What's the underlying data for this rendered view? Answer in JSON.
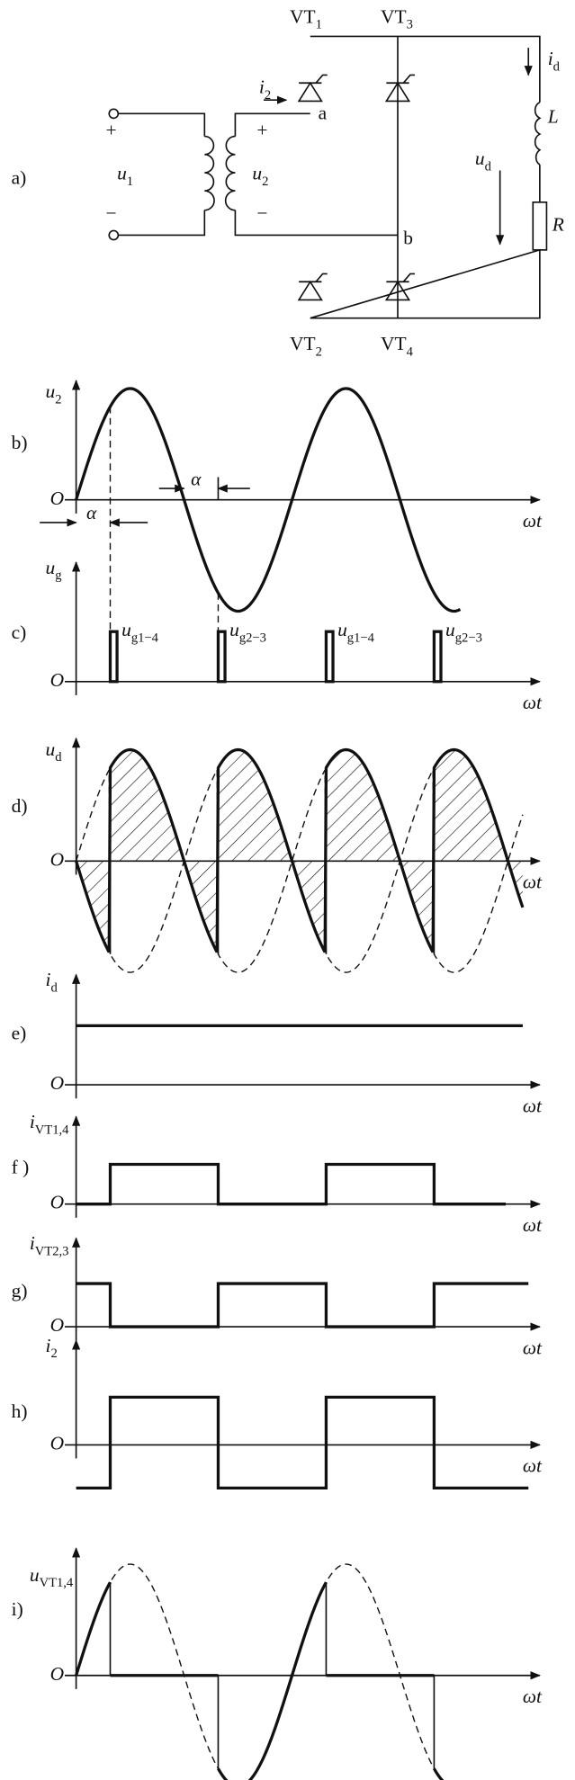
{
  "circuit": {
    "labels": [
      "a)",
      "+",
      {
        "main": "u",
        "sub": "1"
      },
      "−",
      {
        "main": "i",
        "sub": "2"
      },
      "+",
      {
        "main": "u",
        "sub": "2"
      },
      "−",
      "a",
      "b",
      {
        "main": "VT",
        "sub": "1"
      },
      {
        "main": "VT",
        "sub": "3"
      },
      {
        "main": "VT",
        "sub": "2"
      },
      {
        "main": "VT",
        "sub": "4"
      },
      {
        "main": "i",
        "sub": "d"
      },
      "L",
      {
        "main": "u",
        "sub": "d"
      },
      "R"
    ]
  },
  "panels": [
    {
      "label": "b)",
      "ylabel": {
        "main": "u",
        "sub": "2"
      },
      "origin": "O",
      "xlabel": "ωt",
      "marks": [
        "α",
        "α"
      ]
    },
    {
      "label": "c)",
      "ylabel": {
        "main": "u",
        "sub": "g"
      },
      "origin": "O",
      "xlabel": "ωt",
      "marks": [
        {
          "main": "u",
          "sub": "g1−4"
        },
        {
          "main": "u",
          "sub": "g2−3"
        },
        {
          "main": "u",
          "sub": "g1−4"
        },
        {
          "main": "u",
          "sub": "g2−3"
        }
      ]
    },
    {
      "label": "d)",
      "ylabel": {
        "main": "u",
        "sub": "d"
      },
      "origin": "O",
      "xlabel": "ωt"
    },
    {
      "label": "e)",
      "ylabel": {
        "main": "i",
        "sub": "d"
      },
      "origin": "O",
      "xlabel": "ωt"
    },
    {
      "label": "f )",
      "ylabel": {
        "main": "i",
        "sub": "VT1,4"
      },
      "origin": "O",
      "xlabel": "ωt"
    },
    {
      "label": "g)",
      "ylabel": {
        "main": "i",
        "sub": "VT2,3"
      },
      "origin": "O",
      "xlabel": "ωt"
    },
    {
      "label": "h)",
      "ylabel": {
        "main": "i",
        "sub": "2"
      },
      "origin": "O",
      "xlabel": "ωt"
    },
    {
      "label": "i)",
      "ylabel": {
        "main": "u",
        "sub": "VT1,4"
      },
      "origin": "O",
      "xlabel": "ωt"
    }
  ]
}
